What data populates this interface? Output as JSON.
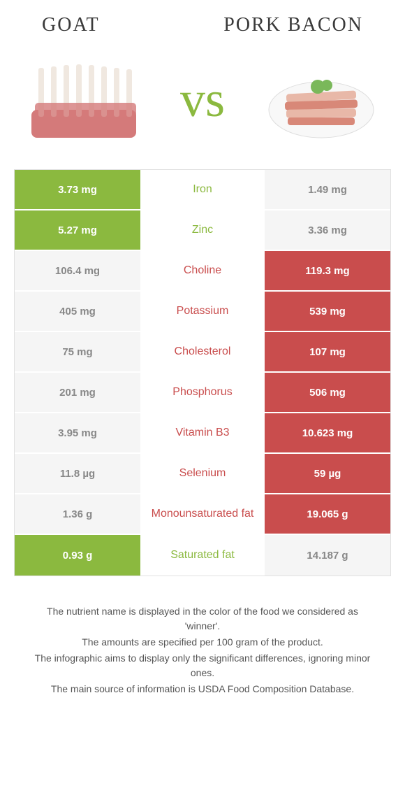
{
  "titles": {
    "left": "Goat",
    "right": "Pork bacon"
  },
  "vs": "vs",
  "colors": {
    "goat": "#8bb93f",
    "bacon": "#c94d4d",
    "neutral_bg": "#f5f5f5",
    "neutral_text": "#888888"
  },
  "nutrients": [
    {
      "name": "Iron",
      "left": "3.73 mg",
      "right": "1.49 mg",
      "winner": "goat"
    },
    {
      "name": "Zinc",
      "left": "5.27 mg",
      "right": "3.36 mg",
      "winner": "goat"
    },
    {
      "name": "Choline",
      "left": "106.4 mg",
      "right": "119.3 mg",
      "winner": "bacon"
    },
    {
      "name": "Potassium",
      "left": "405 mg",
      "right": "539 mg",
      "winner": "bacon"
    },
    {
      "name": "Cholesterol",
      "left": "75 mg",
      "right": "107 mg",
      "winner": "bacon"
    },
    {
      "name": "Phosphorus",
      "left": "201 mg",
      "right": "506 mg",
      "winner": "bacon"
    },
    {
      "name": "Vitamin B3",
      "left": "3.95 mg",
      "right": "10.623 mg",
      "winner": "bacon"
    },
    {
      "name": "Selenium",
      "left": "11.8 µg",
      "right": "59 µg",
      "winner": "bacon"
    },
    {
      "name": "Monounsaturated fat",
      "left": "1.36 g",
      "right": "19.065 g",
      "winner": "bacon"
    },
    {
      "name": "Saturated fat",
      "left": "0.93 g",
      "right": "14.187 g",
      "winner": "goat"
    }
  ],
  "footer": {
    "line1": "The nutrient name is displayed in the color of the food we considered as 'winner'.",
    "line2": "The amounts are specified per 100 gram of the product.",
    "line3": "The infographic aims to display only the significant differences, ignoring minor ones.",
    "line4": "The main source of information is USDA Food Composition Database."
  }
}
